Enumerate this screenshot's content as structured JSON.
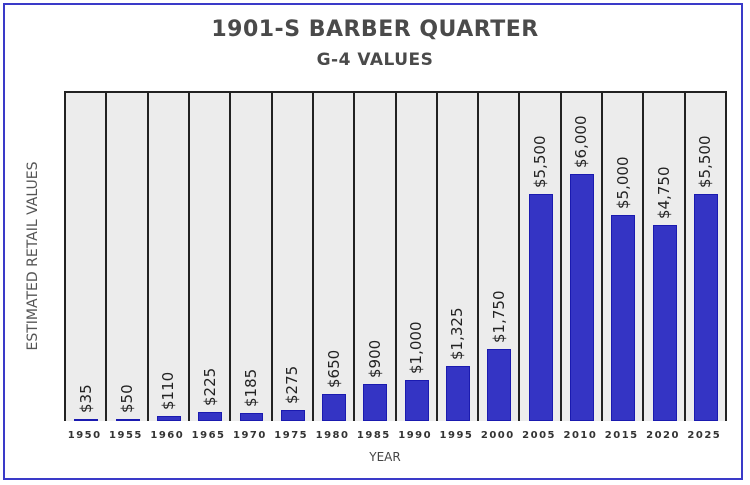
{
  "chart_data": {
    "type": "bar",
    "title": "1901-S BARBER QUARTER",
    "subtitle": "G-4 VALUES",
    "xlabel": "YEAR",
    "ylabel": "ESTIMATED RETAIL VALUES",
    "categories": [
      "1950",
      "1955",
      "1960",
      "1965",
      "1970",
      "1975",
      "1980",
      "1985",
      "1990",
      "1995",
      "2000",
      "2005",
      "2010",
      "2015",
      "2020",
      "2025"
    ],
    "values": [
      35,
      50,
      110,
      225,
      185,
      275,
      650,
      900,
      1000,
      1325,
      1750,
      5500,
      6000,
      5000,
      4750,
      5500
    ],
    "value_labels": [
      "$35",
      "$50",
      "$110",
      "$225",
      "$185",
      "$275",
      "$650",
      "$900",
      "$1,000",
      "$1,325",
      "$1,750",
      "$5,500",
      "$6,000",
      "$5,000",
      "$4,750",
      "$5,500"
    ],
    "ylim": [
      0,
      8000
    ],
    "grid": false,
    "legend": null,
    "bar_color": "#3434c4",
    "plot_background": "#ececec",
    "border_color": "#3a3ac8"
  }
}
